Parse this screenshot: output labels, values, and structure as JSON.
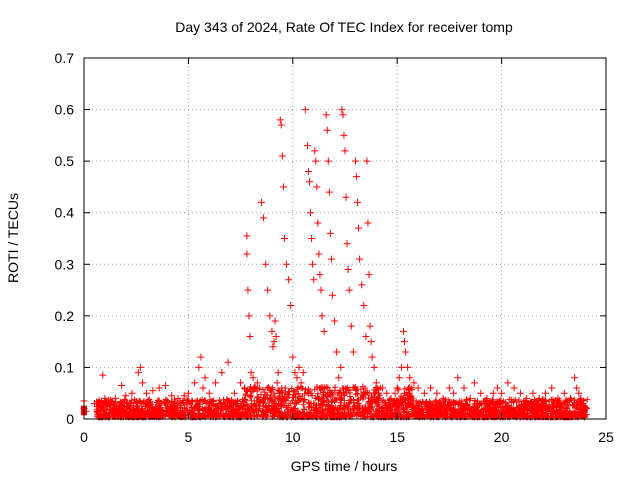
{
  "chart_data": {
    "type": "scatter",
    "title": "Day 343 of 2024, Rate Of TEC Index for receiver tomp",
    "xlabel": "GPS time / hours",
    "ylabel": "ROTI / TECUs",
    "xlim": [
      0,
      25
    ],
    "ylim": [
      0,
      0.7
    ],
    "x_ticks": [
      0,
      5,
      10,
      15,
      20,
      25
    ],
    "y_ticks": [
      0,
      0.1,
      0.2,
      0.3,
      0.4,
      0.5,
      0.6,
      0.7
    ],
    "x_tick_labels": [
      "0",
      "5",
      "10",
      "15",
      "20",
      "25"
    ],
    "y_tick_labels": [
      "0",
      "0.1",
      "0.2",
      "0.3",
      "0.4",
      "0.5",
      "0.6",
      "0.7"
    ],
    "grid": true,
    "marker": "plus",
    "color": "#ff0000",
    "series": [
      {
        "x": [
          0.0,
          0.0,
          0.1,
          0.5,
          0.9,
          1.0,
          1.2,
          1.5,
          1.8,
          2.0,
          2.3,
          2.6,
          2.7,
          2.8,
          3.0,
          3.3,
          3.6,
          3.9,
          4.2,
          4.5,
          4.8,
          5.0,
          5.3,
          5.5,
          5.6,
          5.7,
          5.8,
          6.0,
          6.3,
          6.6,
          6.9,
          7.2,
          7.5,
          7.7,
          7.8,
          7.8,
          7.85,
          7.9,
          7.95,
          8.0,
          8.1,
          8.2,
          8.3,
          8.4,
          8.5,
          8.6,
          8.7,
          8.8,
          8.9,
          9.0,
          9.05,
          9.1,
          9.15,
          9.2,
          9.25,
          9.3,
          9.35,
          9.4,
          9.45,
          9.5,
          9.55,
          9.6,
          9.7,
          9.8,
          9.9,
          10.0,
          10.1,
          10.2,
          10.3,
          10.4,
          10.5,
          10.6,
          10.7,
          10.75,
          10.8,
          10.85,
          10.9,
          10.95,
          11.0,
          11.05,
          11.1,
          11.15,
          11.2,
          11.25,
          11.3,
          11.35,
          11.4,
          11.5,
          11.6,
          11.65,
          11.7,
          11.75,
          11.8,
          11.85,
          11.9,
          12.0,
          12.1,
          12.2,
          12.3,
          12.35,
          12.4,
          12.45,
          12.5,
          12.55,
          12.6,
          12.65,
          12.7,
          12.8,
          12.9,
          13.0,
          13.05,
          13.1,
          13.15,
          13.2,
          13.3,
          13.4,
          13.5,
          13.55,
          13.6,
          13.65,
          13.7,
          13.75,
          13.8,
          13.9,
          14.0,
          14.1,
          14.3,
          14.5,
          14.7,
          14.9,
          15.0,
          15.1,
          15.2,
          15.3,
          15.35,
          15.4,
          15.5,
          15.6,
          15.8,
          16.0,
          16.3,
          16.6,
          16.9,
          17.2,
          17.5,
          17.7,
          17.9,
          18.2,
          18.5,
          18.7,
          19.0,
          19.3,
          19.6,
          19.8,
          20.0,
          20.3,
          20.6,
          20.9,
          21.2,
          21.5,
          21.8,
          22.1,
          22.4,
          22.7,
          23.0,
          23.3,
          23.5,
          23.6,
          23.7,
          23.8,
          23.9,
          24.0
        ],
        "y": [
          0.035,
          0.02,
          0.015,
          0.03,
          0.085,
          0.04,
          0.03,
          0.04,
          0.065,
          0.045,
          0.05,
          0.09,
          0.1,
          0.07,
          0.05,
          0.055,
          0.06,
          0.065,
          0.045,
          0.04,
          0.045,
          0.05,
          0.07,
          0.1,
          0.12,
          0.06,
          0.08,
          0.05,
          0.07,
          0.09,
          0.11,
          0.05,
          0.07,
          0.06,
          0.355,
          0.32,
          0.25,
          0.2,
          0.16,
          0.09,
          0.08,
          0.06,
          0.07,
          0.06,
          0.42,
          0.39,
          0.3,
          0.25,
          0.2,
          0.17,
          0.14,
          0.15,
          0.19,
          0.16,
          0.07,
          0.09,
          0.05,
          0.58,
          0.57,
          0.51,
          0.45,
          0.35,
          0.3,
          0.27,
          0.22,
          0.12,
          0.09,
          0.08,
          0.1,
          0.07,
          0.09,
          0.6,
          0.53,
          0.48,
          0.46,
          0.4,
          0.35,
          0.3,
          0.27,
          0.52,
          0.5,
          0.45,
          0.38,
          0.32,
          0.28,
          0.25,
          0.2,
          0.17,
          0.59,
          0.56,
          0.5,
          0.44,
          0.36,
          0.31,
          0.24,
          0.19,
          0.13,
          0.08,
          0.1,
          0.6,
          0.59,
          0.55,
          0.52,
          0.43,
          0.34,
          0.29,
          0.25,
          0.18,
          0.13,
          0.5,
          0.47,
          0.42,
          0.37,
          0.31,
          0.26,
          0.22,
          0.16,
          0.5,
          0.38,
          0.28,
          0.18,
          0.15,
          0.12,
          0.1,
          0.07,
          0.05,
          0.06,
          0.05,
          0.04,
          0.05,
          0.06,
          0.08,
          0.1,
          0.17,
          0.15,
          0.13,
          0.1,
          0.08,
          0.07,
          0.06,
          0.05,
          0.06,
          0.05,
          0.04,
          0.06,
          0.05,
          0.08,
          0.06,
          0.04,
          0.07,
          0.05,
          0.04,
          0.05,
          0.06,
          0.05,
          0.07,
          0.06,
          0.05,
          0.04,
          0.05,
          0.04,
          0.05,
          0.06,
          0.04,
          0.05,
          0.04,
          0.08,
          0.06,
          0.05,
          0.04,
          0.03,
          0.02
        ]
      }
    ]
  }
}
